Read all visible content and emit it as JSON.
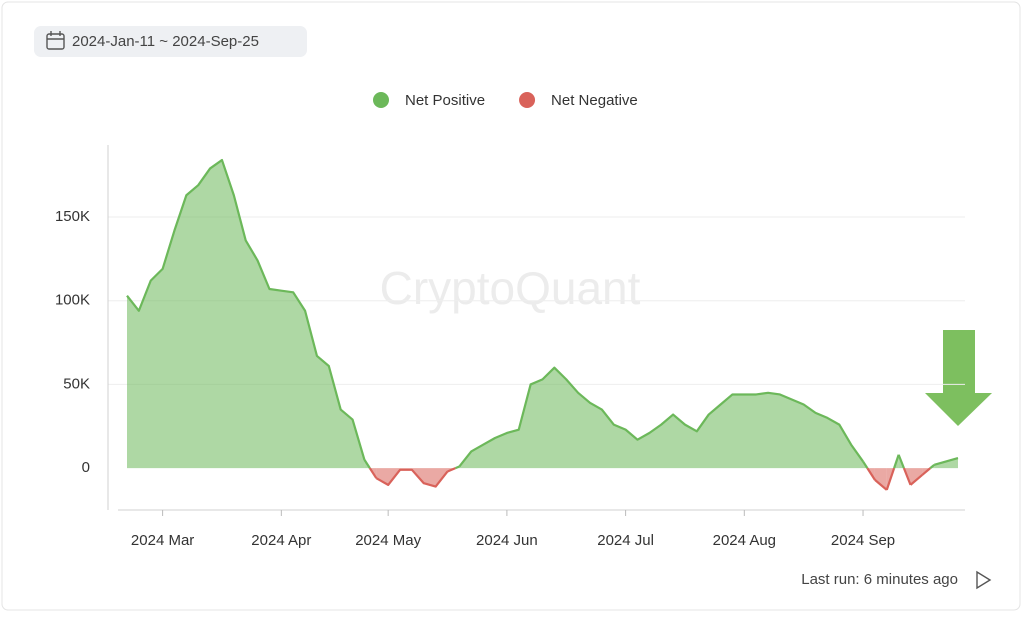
{
  "toolbar": {
    "date_range": "2024-Jan-11 ~ 2024-Sep-25"
  },
  "footer": {
    "last_run": "Last run: 6 minutes ago"
  },
  "chart_data": {
    "type": "area",
    "watermark": "CryptoQuant",
    "categories": [
      null,
      null,
      null,
      "2024 Mar",
      null,
      null,
      null,
      null,
      null,
      null,
      null,
      null,
      null,
      "2024 Apr",
      null,
      null,
      null,
      null,
      null,
      null,
      null,
      null,
      "2024 May",
      null,
      null,
      null,
      null,
      null,
      null,
      null,
      null,
      null,
      "2024 Jun",
      null,
      null,
      null,
      null,
      null,
      null,
      null,
      null,
      null,
      "2024 Jul",
      null,
      null,
      null,
      null,
      null,
      null,
      null,
      null,
      null,
      "2024 Aug",
      null,
      null,
      null,
      null,
      null,
      null,
      null,
      null,
      null,
      "2024 Sep",
      null,
      null,
      null,
      null,
      null,
      null,
      null,
      null
    ],
    "series": [
      {
        "name": "Net Positive",
        "color": "#6cb85a",
        "values": [
          103000,
          94000,
          112000,
          119000,
          142000,
          163000,
          169000,
          179000,
          184000,
          163000,
          136000,
          124000,
          107000,
          106000,
          105000,
          94000,
          67000,
          61000,
          35000,
          29000,
          5000,
          null,
          null,
          null,
          null,
          null,
          null,
          null,
          1000,
          10000,
          14000,
          18000,
          21000,
          23000,
          50000,
          53000,
          60000,
          53000,
          45000,
          39000,
          35000,
          26000,
          23000,
          17000,
          21000,
          26000,
          32000,
          26000,
          22000,
          32000,
          38000,
          44000,
          44000,
          44000,
          45000,
          44000,
          41000,
          38000,
          33000,
          30000,
          26000,
          14000,
          4000,
          null,
          null,
          8000,
          null,
          null,
          2000,
          4000,
          6000
        ]
      },
      {
        "name": "Net Negative",
        "color": "#d9625a",
        "values": [
          null,
          null,
          null,
          null,
          null,
          null,
          null,
          null,
          null,
          null,
          null,
          null,
          null,
          null,
          null,
          null,
          null,
          null,
          null,
          null,
          null,
          -6000,
          -10000,
          -1000,
          -1000,
          -9000,
          -11000,
          -2000,
          null,
          null,
          null,
          null,
          null,
          null,
          null,
          null,
          null,
          null,
          null,
          null,
          null,
          null,
          null,
          null,
          null,
          null,
          null,
          null,
          null,
          null,
          null,
          null,
          null,
          null,
          null,
          null,
          null,
          null,
          null,
          null,
          null,
          null,
          null,
          -7000,
          -13000,
          null,
          -10000,
          -4000,
          null,
          null,
          null
        ]
      }
    ],
    "ylim": [
      -25000,
      193000
    ],
    "yticks": [
      0,
      {
        "value": 50000,
        "label": "50K"
      },
      {
        "value": 100000,
        "label": "100K"
      },
      {
        "value": 150000,
        "label": "150K"
      }
    ],
    "grid": true,
    "legend": "top"
  }
}
